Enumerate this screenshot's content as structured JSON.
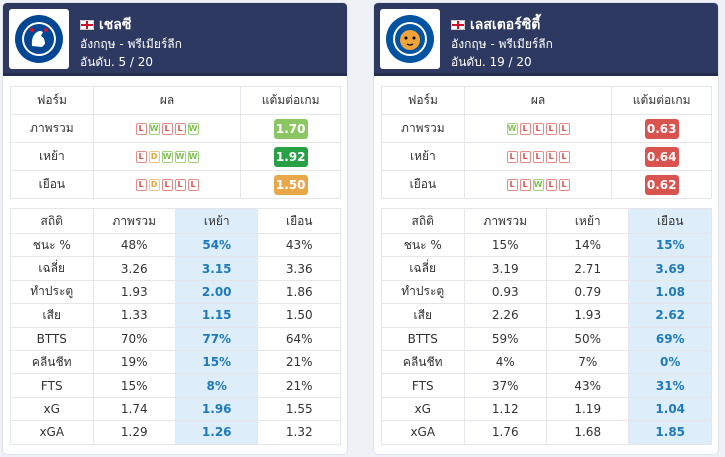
{
  "teams": [
    {
      "name": "เชลซี",
      "league": "อังกฤษ - พรีเมียร์ลีก",
      "rank": "อันดับ. 5 / 20",
      "logo_icon": "chelsea-crest-icon",
      "logo_text": "CHELSEA FOOTBALL CLUB",
      "form_headers": [
        "ฟอร์ม",
        "ผล",
        "แต้มต่อเกม"
      ],
      "form_rows": [
        {
          "label": "ภาพรวม",
          "results": [
            "L",
            "W",
            "L",
            "L",
            "W"
          ],
          "ppg": "1.70",
          "color": "#8cc663"
        },
        {
          "label": "เหย้า",
          "results": [
            "L",
            "D",
            "W",
            "W",
            "W"
          ],
          "ppg": "1.92",
          "color": "#27a046"
        },
        {
          "label": "เยือน",
          "results": [
            "L",
            "D",
            "L",
            "L",
            "L"
          ],
          "ppg": "1.50",
          "color": "#e8a84a"
        }
      ],
      "stat_headers": [
        "สถิติ",
        "ภาพรวม",
        "เหย้า",
        "เยือน"
      ],
      "highlight_col": 2,
      "stats": [
        {
          "label": "ชนะ %",
          "values": [
            "48%",
            "54%",
            "43%"
          ]
        },
        {
          "label": "เฉลี่ย",
          "values": [
            "3.26",
            "3.15",
            "3.36"
          ]
        },
        {
          "label": "ทำประตู",
          "values": [
            "1.93",
            "2.00",
            "1.86"
          ]
        },
        {
          "label": "เสีย",
          "values": [
            "1.33",
            "1.15",
            "1.50"
          ]
        },
        {
          "label": "BTTS",
          "values": [
            "70%",
            "77%",
            "64%"
          ]
        },
        {
          "label": "คลีนชีท",
          "values": [
            "19%",
            "15%",
            "21%"
          ]
        },
        {
          "label": "FTS",
          "values": [
            "15%",
            "8%",
            "21%"
          ]
        },
        {
          "label": "xG",
          "values": [
            "1.74",
            "1.96",
            "1.55"
          ]
        },
        {
          "label": "xGA",
          "values": [
            "1.29",
            "1.26",
            "1.32"
          ]
        }
      ]
    },
    {
      "name": "เลสเตอร์ซิตี้",
      "league": "อังกฤษ - พรีเมียร์ลีก",
      "rank": "อันดับ. 19 / 20",
      "logo_icon": "leicester-crest-icon",
      "logo_text": "LEICESTER CITY FOOTBALL CLUB",
      "form_headers": [
        "ฟอร์ม",
        "ผล",
        "แต้มต่อเกม"
      ],
      "form_rows": [
        {
          "label": "ภาพรวม",
          "results": [
            "W",
            "L",
            "L",
            "L",
            "L"
          ],
          "ppg": "0.63",
          "color": "#d9534f"
        },
        {
          "label": "เหย้า",
          "results": [
            "L",
            "L",
            "L",
            "L",
            "L"
          ],
          "ppg": "0.64",
          "color": "#d9534f"
        },
        {
          "label": "เยือน",
          "results": [
            "L",
            "L",
            "W",
            "L",
            "L"
          ],
          "ppg": "0.62",
          "color": "#d9534f"
        }
      ],
      "stat_headers": [
        "สถิติ",
        "ภาพรวม",
        "เหย้า",
        "เยือน"
      ],
      "highlight_col": 3,
      "stats": [
        {
          "label": "ชนะ %",
          "values": [
            "15%",
            "14%",
            "15%"
          ]
        },
        {
          "label": "เฉลี่ย",
          "values": [
            "3.19",
            "2.71",
            "3.69"
          ]
        },
        {
          "label": "ทำประตู",
          "values": [
            "0.93",
            "0.79",
            "1.08"
          ]
        },
        {
          "label": "เสีย",
          "values": [
            "2.26",
            "1.93",
            "2.62"
          ]
        },
        {
          "label": "BTTS",
          "values": [
            "59%",
            "50%",
            "69%"
          ]
        },
        {
          "label": "คลีนชีท",
          "values": [
            "4%",
            "7%",
            "0%"
          ]
        },
        {
          "label": "FTS",
          "values": [
            "37%",
            "43%",
            "31%"
          ]
        },
        {
          "label": "xG",
          "values": [
            "1.12",
            "1.19",
            "1.04"
          ]
        },
        {
          "label": "xGA",
          "values": [
            "1.76",
            "1.68",
            "1.85"
          ]
        }
      ]
    }
  ]
}
